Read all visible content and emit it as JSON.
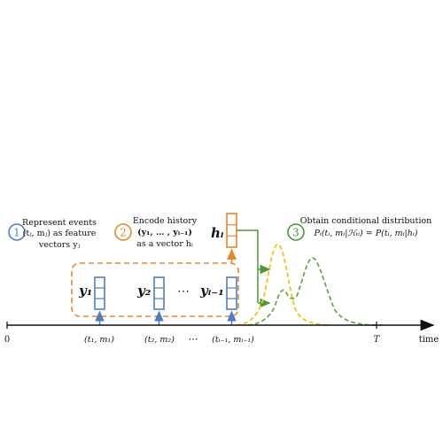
{
  "colors": {
    "blue": "#4f7fc2",
    "orange": "#e8872c",
    "green": "#4a9a3a",
    "yellow": "#f0c419",
    "dashed_green": "#6aa84f",
    "axis": "#111111",
    "text": "#111111"
  },
  "steps": [
    {
      "number": "1",
      "lines": [
        "Represent events",
        "(tⱼ, mⱼ) as feature",
        "vectors yⱼ"
      ]
    },
    {
      "number": "2",
      "lines": [
        "Encode history",
        "(y₁, … , yᵢ₋₁)",
        "as a vector hᵢ"
      ]
    },
    {
      "number": "3",
      "lines": [
        "Obtain conditional distribution",
        "Pᵢ(tᵢ, mᵢ|ℋₜᵢ) = P(tᵢ, mᵢ|hᵢ)"
      ]
    }
  ],
  "hidden_state_label": "hᵢ",
  "vectors": [
    {
      "label": "y₁",
      "tick_label": "(t₁, m₁)"
    },
    {
      "label": "y₂",
      "tick_label": "(t₂, m₂)"
    },
    {
      "label": "yᵢ₋₁",
      "tick_label": "(tᵢ₋₁, mᵢ₋₁)"
    }
  ],
  "ellipsis": "⋯",
  "axis": {
    "origin_label": "0",
    "end_label": "T",
    "axis_label": "time",
    "ellipsis": "⋯"
  }
}
